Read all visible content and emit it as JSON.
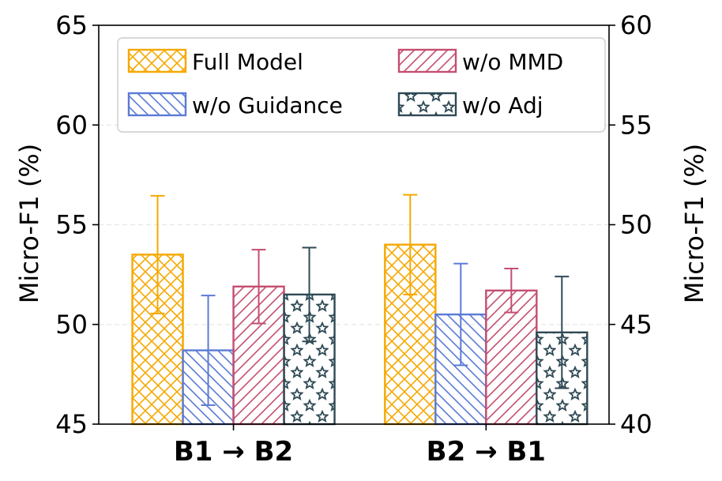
{
  "chart_data": {
    "type": "bar",
    "categories": [
      "B1 → B2",
      "B2 → B1"
    ],
    "series": [
      {
        "name": "Full Model",
        "values": [
          53.5,
          54.0
        ],
        "errors": [
          2.95,
          2.5
        ],
        "color": "#f5a800",
        "pattern": "crosshatch"
      },
      {
        "name": "w/o Guidance",
        "values": [
          48.7,
          50.5
        ],
        "errors": [
          2.75,
          2.55
        ],
        "color": "#5b7bd5",
        "pattern": "backslash"
      },
      {
        "name": "w/o MMD",
        "values": [
          51.9,
          51.7
        ],
        "errors": [
          1.85,
          1.1
        ],
        "color": "#c44e70",
        "pattern": "slash"
      },
      {
        "name": "w/o Adj",
        "values": [
          51.5,
          49.6
        ],
        "errors": [
          2.35,
          2.8
        ],
        "color": "#2f4a55",
        "pattern": "stars"
      }
    ],
    "ylabel_left": "Micro-F1 (%)",
    "ylabel_right": "Micro-F1 (%)",
    "ylim_left": [
      45,
      65
    ],
    "ylim_right": [
      40,
      60
    ],
    "yticks_left": [
      "45",
      "50",
      "55",
      "60",
      "65"
    ],
    "yticks_right": [
      "40",
      "45",
      "50",
      "55",
      "60"
    ],
    "legend_location": "top",
    "grid": "dashed horizontal"
  }
}
